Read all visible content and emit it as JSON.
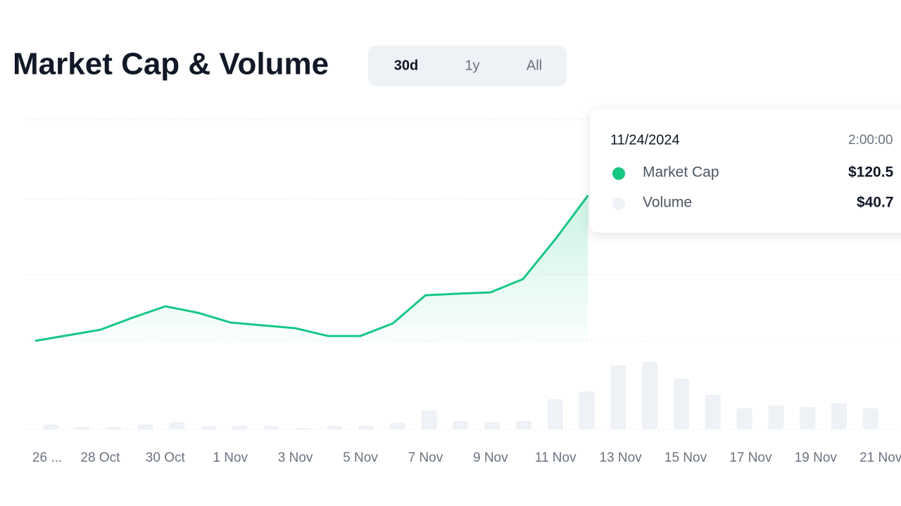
{
  "chart_data": {
    "type": "line",
    "title": "Market Cap & Volume",
    "tabs": [
      "30d",
      "1y",
      "All"
    ],
    "active_tab": 0,
    "categories": [
      "26 ...",
      null,
      "28 Oct",
      null,
      "30 Oct",
      null,
      "1 Nov",
      null,
      "3 Nov",
      null,
      "5 Nov",
      null,
      "7 Nov",
      null,
      "9 Nov",
      null,
      "11 Nov",
      null,
      "13 Nov",
      null,
      "15 Nov",
      null,
      "17 Nov",
      null,
      "19 Nov",
      null,
      "21 Nov"
    ],
    "series": [
      {
        "name": "Market Cap",
        "color": "#16c784",
        "values": [
          0,
          2.5,
          5,
          10.5,
          15.6,
          12.7,
          8.3,
          7,
          5.7,
          2.2,
          2.2,
          7.9,
          20.6,
          21.3,
          21.9,
          27.9,
          46,
          65.7,
          null,
          null,
          null,
          null,
          null,
          null,
          null,
          null,
          null
        ]
      },
      {
        "name": "Volume",
        "color": "#eef1f5",
        "axis": "y2",
        "values": [
          7,
          3,
          3,
          7,
          10,
          5,
          5,
          5,
          2,
          5,
          5,
          9,
          27,
          12,
          10,
          12,
          43,
          54,
          91,
          96,
          72,
          49,
          30,
          34,
          32,
          37,
          30
        ]
      }
    ],
    "ylim": [
      0,
      100
    ],
    "yticks": [
      0,
      30,
      64,
      100
    ],
    "y2lim": [
      0,
      126
    ],
    "y2ticks": [
      0
    ],
    "grid": true,
    "tooltip": {
      "date": "11/24/2024",
      "time": "2:00:00",
      "values": [
        "$120.5",
        "$40.7"
      ]
    }
  }
}
